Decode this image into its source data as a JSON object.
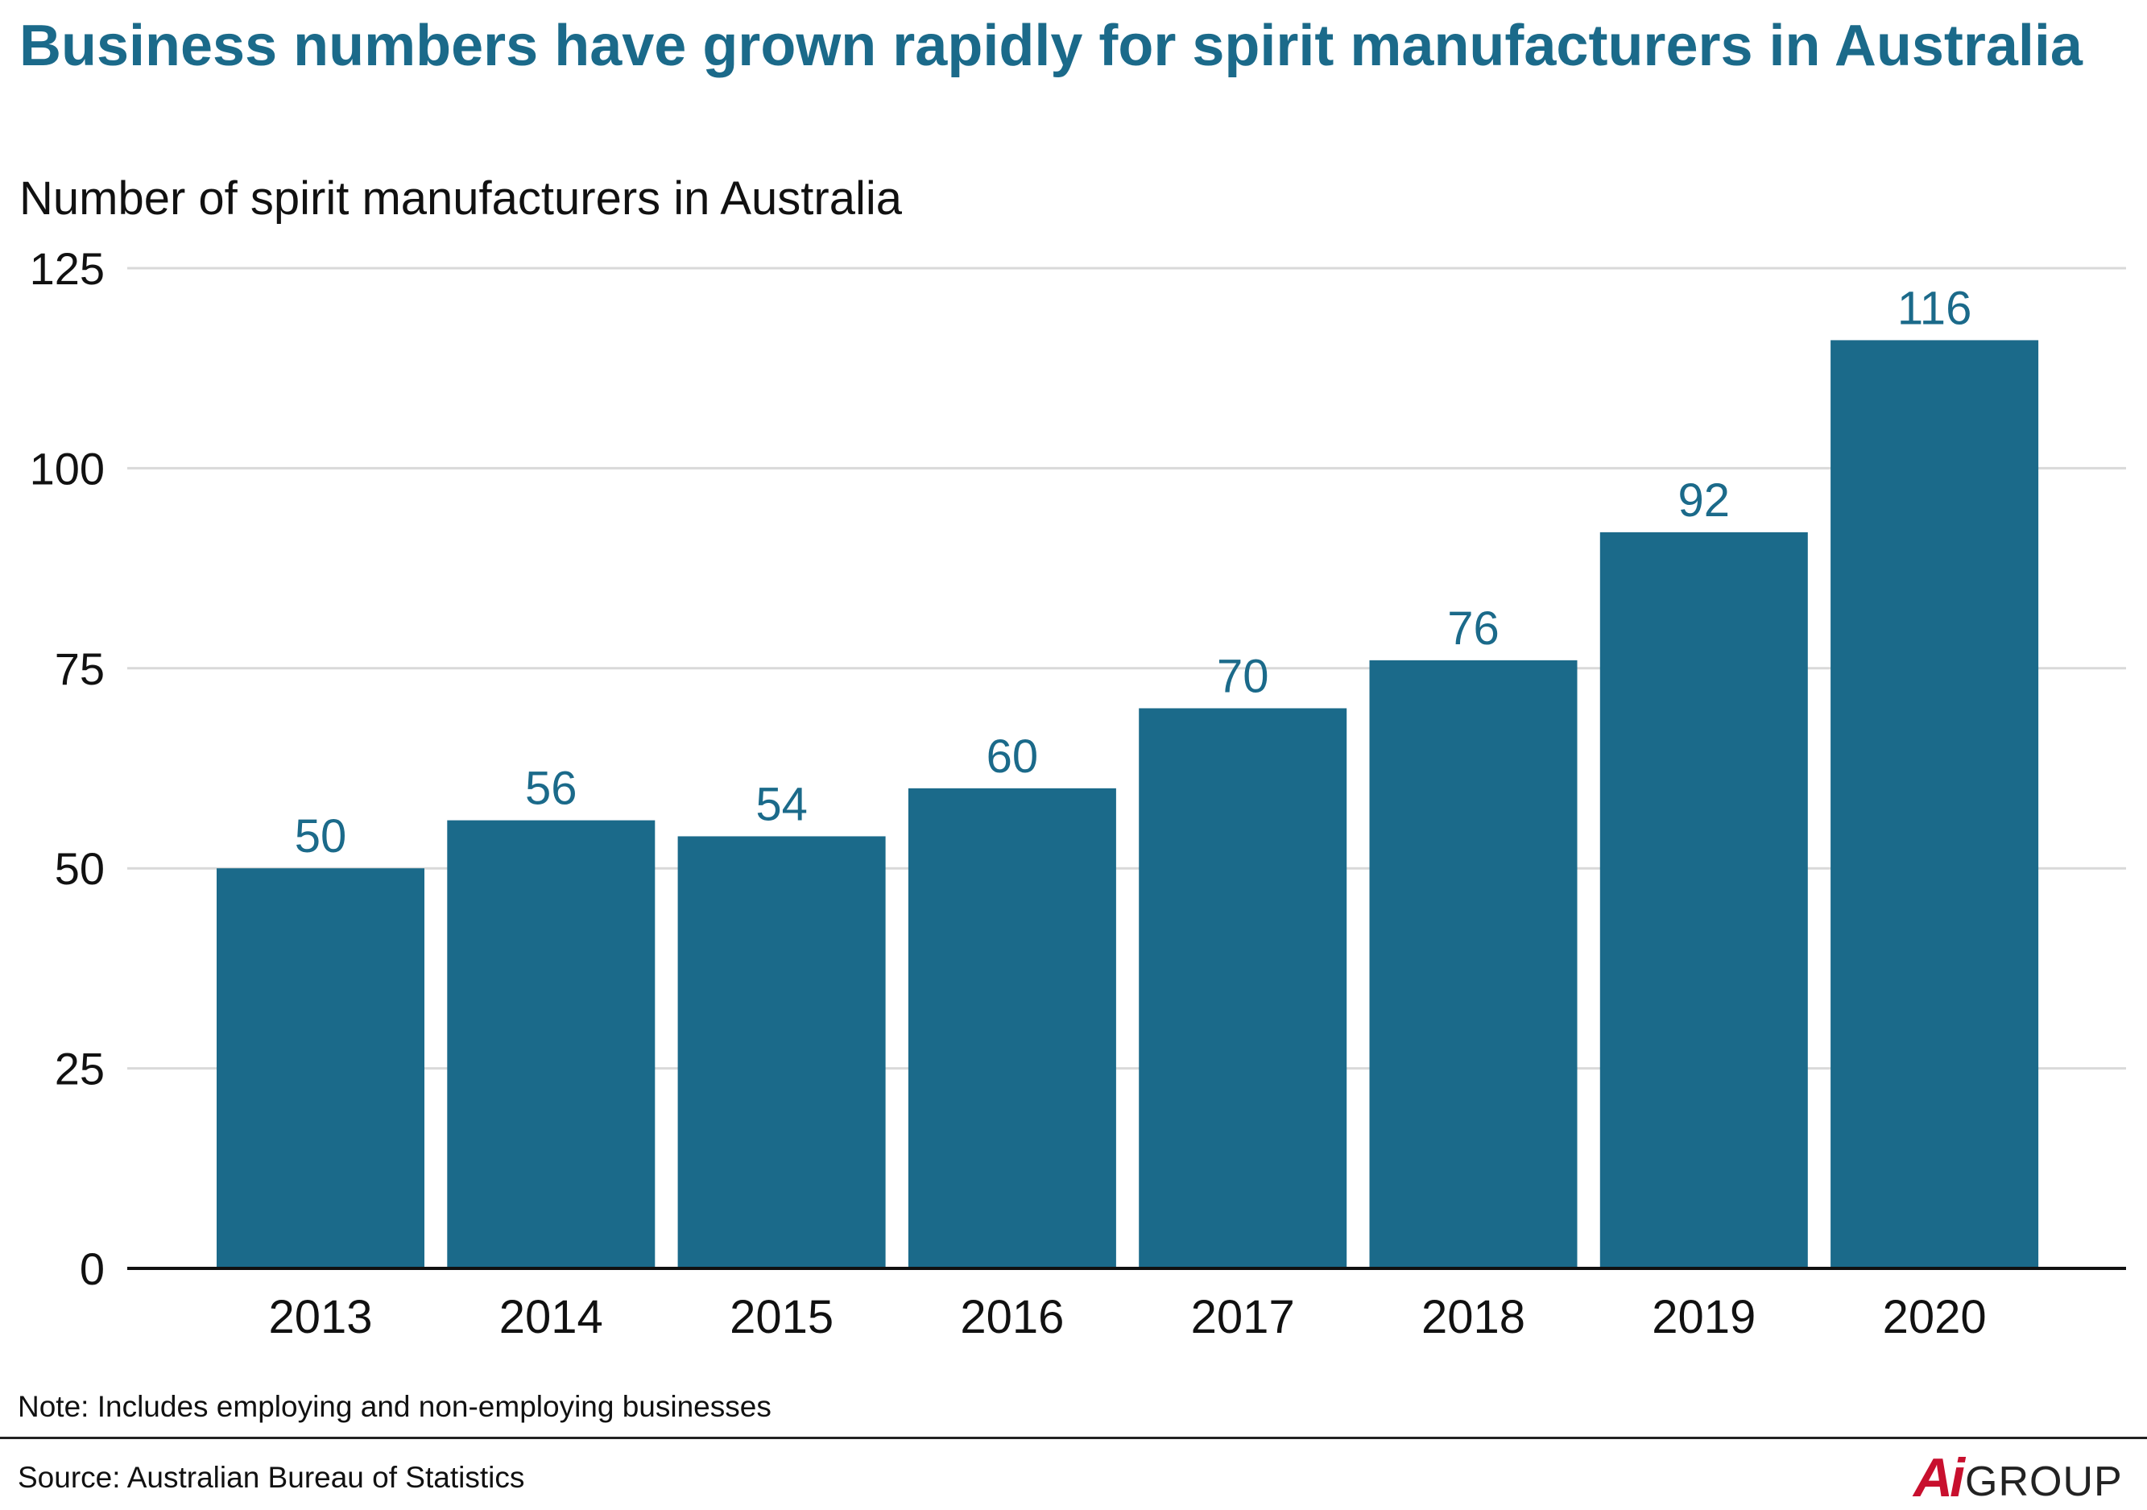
{
  "title": "Business numbers have grown rapidly for spirit manufacturers in Australia",
  "subtitle": "Number of spirit manufacturers in Australia",
  "note": "Note: Includes employing and non-employing businesses",
  "source": "Source: Australian Bureau of Statistics",
  "logo": {
    "mark": "Ai",
    "word": "GROUP"
  },
  "colors": {
    "bar": "#1b6a8a",
    "label": "#1b6a8a",
    "grid": "#d9d9d9",
    "axis": "#111111"
  },
  "chart_data": {
    "type": "bar",
    "title": "Business numbers have grown rapidly for spirit manufacturers in Australia",
    "subtitle": "Number of spirit manufacturers in Australia",
    "categories": [
      "2013",
      "2014",
      "2015",
      "2016",
      "2017",
      "2018",
      "2019",
      "2020"
    ],
    "values": [
      50,
      56,
      54,
      60,
      70,
      76,
      92,
      116
    ],
    "ylim": [
      0,
      125
    ],
    "yticks": [
      0,
      25,
      50,
      75,
      100,
      125
    ],
    "xlabel": "",
    "ylabel": "",
    "grid": true,
    "data_labels": true
  }
}
